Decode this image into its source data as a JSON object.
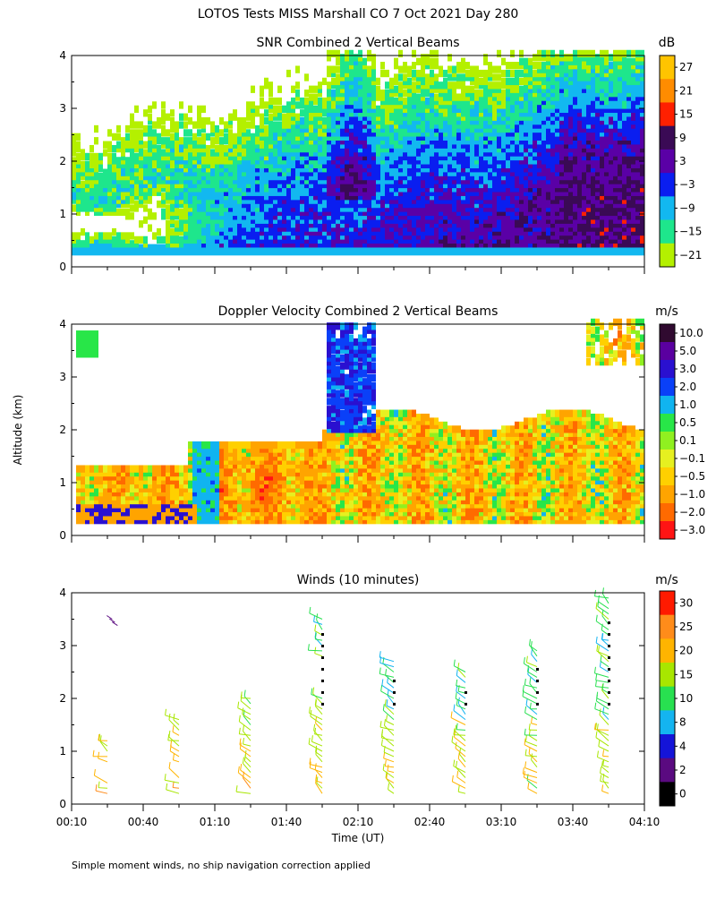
{
  "figure": {
    "title": "LOTOS Tests MISS Marshall CO    7 Oct 2021 Day 280",
    "ylabel": "Altitude (km)",
    "xlabel": "Time (UT)",
    "footnote": "Simple moment winds, no ship navigation correction applied"
  },
  "chart_data": [
    {
      "type": "heatmap",
      "title": "SNR Combined 2 Vertical Beams",
      "units": "dB",
      "x": [
        "00:10",
        "00:40",
        "01:10",
        "01:40",
        "02:10",
        "02:40",
        "03:10",
        "03:40",
        "04:10"
      ],
      "xlim_minutes_ut": [
        10,
        250
      ],
      "ylim": [
        0,
        4
      ],
      "yticks": [
        "0",
        "1",
        "2",
        "3",
        "4"
      ],
      "colorbar": {
        "labels": [
          "27",
          "21",
          "15",
          "9",
          "3",
          "−3",
          "−9",
          "−15",
          "−21"
        ],
        "colors": [
          "#ffc400",
          "#ff8c00",
          "#ff2000",
          "#3a0a55",
          "#5a00a6",
          "#0a1ef0",
          "#12b8f0",
          "#1ee68c",
          "#b4f000"
        ]
      }
    },
    {
      "type": "heatmap",
      "title": "Doppler Velocity Combined 2 Vertical Beams",
      "units": "m/s",
      "x": [
        "00:10",
        "00:40",
        "01:10",
        "01:40",
        "02:10",
        "02:40",
        "03:10",
        "03:40",
        "04:10"
      ],
      "xlim_minutes_ut": [
        10,
        250
      ],
      "ylim": [
        0,
        4
      ],
      "yticks": [
        "0",
        "1",
        "2",
        "3",
        "4"
      ],
      "colorbar": {
        "labels": [
          "10.0",
          "5.0",
          "3.0",
          "2.0",
          "1.0",
          "0.5",
          "0.1",
          "−0.1",
          "−0.5",
          "−1.0",
          "−2.0",
          "−3.0"
        ],
        "colors": [
          "#300a30",
          "#5a00a0",
          "#2a10d0",
          "#0a40f8",
          "#10b4f0",
          "#28e648",
          "#90f020",
          "#e6f020",
          "#ffd000",
          "#ffa400",
          "#ff6a00",
          "#ff1414"
        ]
      }
    },
    {
      "type": "scatter",
      "title": "Winds (10 minutes)",
      "units": "m/s",
      "x": [
        "00:10",
        "00:40",
        "01:10",
        "01:40",
        "02:10",
        "02:40",
        "03:10",
        "03:40",
        "04:10"
      ],
      "xlim_minutes_ut": [
        10,
        250
      ],
      "ylim": [
        0,
        4
      ],
      "yticks": [
        "0",
        "1",
        "2",
        "3",
        "4"
      ],
      "profile_times_minutes_ut": [
        25,
        55,
        85,
        115,
        145,
        175,
        205,
        235
      ],
      "colorbar": {
        "labels": [
          "30",
          "25",
          "20",
          "15",
          "10",
          "8",
          "4",
          "2",
          "0"
        ],
        "colors": [
          "#ff1a00",
          "#ff8c1a",
          "#ffb400",
          "#a8e600",
          "#28e050",
          "#14b4f0",
          "#1414d8",
          "#5a0a80",
          "#000000"
        ]
      }
    }
  ]
}
